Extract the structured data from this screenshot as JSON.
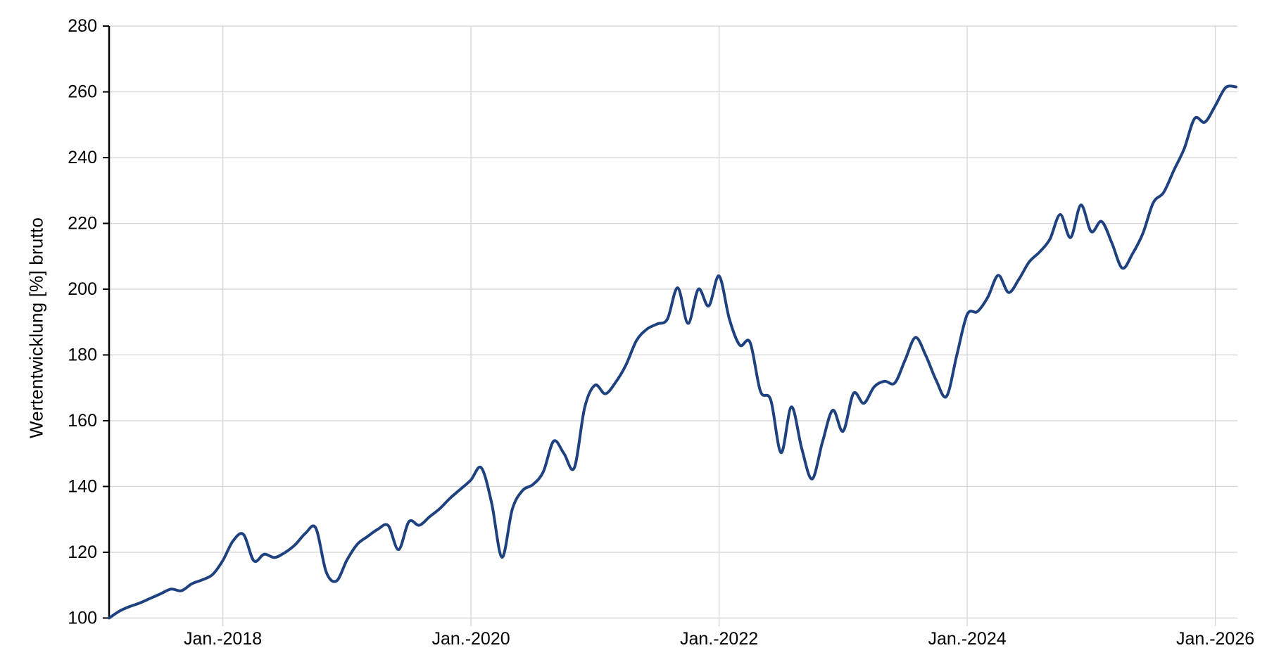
{
  "page": {
    "background_color": "#ffffff",
    "description": "Line chart of cumulative performance (Wertentwicklung) in percent, gross, monthly from Feb 2017 to Mar 2026"
  },
  "chart_data": {
    "type": "line",
    "title": "",
    "xlabel": "",
    "ylabel": "Wertentwicklung [%] brutto",
    "legend_position": "none",
    "grid": true,
    "ylim": [
      100,
      280
    ],
    "y_ticks": [
      100,
      120,
      140,
      160,
      180,
      200,
      220,
      240,
      260,
      280
    ],
    "x_tick_labels": [
      "Jan.-2018",
      "Jan.-2020",
      "Jan.-2022",
      "Jan.-2024",
      "Jan.-2026"
    ],
    "x_tick_months": [
      "2018-01",
      "2020-01",
      "2022-01",
      "2024-01",
      "2026-01"
    ],
    "colors": {
      "line": "#1e4280",
      "grid": "#d7d7d7",
      "axis": "#000000",
      "text": "#000000"
    },
    "series": [
      {
        "name": "Wertentwicklung [%] brutto",
        "frequency": "monthly",
        "start_month": "2017-02",
        "end_month": "2026-03",
        "values": [
          100.0,
          102.1,
          103.5,
          104.6,
          106.0,
          107.4,
          108.8,
          108.3,
          110.4,
          111.6,
          113.2,
          117.5,
          123.5,
          125.4,
          117.4,
          119.4,
          118.4,
          119.9,
          122.3,
          125.8,
          127.3,
          114.0,
          111.3,
          117.6,
          122.4,
          124.8,
          127.0,
          128.1,
          120.8,
          129.3,
          128.2,
          130.8,
          133.3,
          136.5,
          139.2,
          142.0,
          145.7,
          135.0,
          118.5,
          133.1,
          138.8,
          140.6,
          144.5,
          153.8,
          150.0,
          145.7,
          164.0,
          170.8,
          168.2,
          171.7,
          177.0,
          184.3,
          187.8,
          189.4,
          190.9,
          200.4,
          189.6,
          200.0,
          194.9,
          204.0,
          190.9,
          183.0,
          183.8,
          169.0,
          166.3,
          150.3,
          164.2,
          151.5,
          142.3,
          153.5,
          163.2,
          156.8,
          168.3,
          165.3,
          170.3,
          172.0,
          171.5,
          178.5,
          185.3,
          179.8,
          172.3,
          167.4,
          180.0,
          192.3,
          193.2,
          197.6,
          204.2,
          199.0,
          203.0,
          208.3,
          211.3,
          215.2,
          222.7,
          215.7,
          225.6,
          217.5,
          220.6,
          214.0,
          206.4,
          210.8,
          217.0,
          226.3,
          229.4,
          236.2,
          242.8,
          251.9,
          250.8,
          255.8,
          261.3,
          261.5
        ]
      }
    ]
  }
}
